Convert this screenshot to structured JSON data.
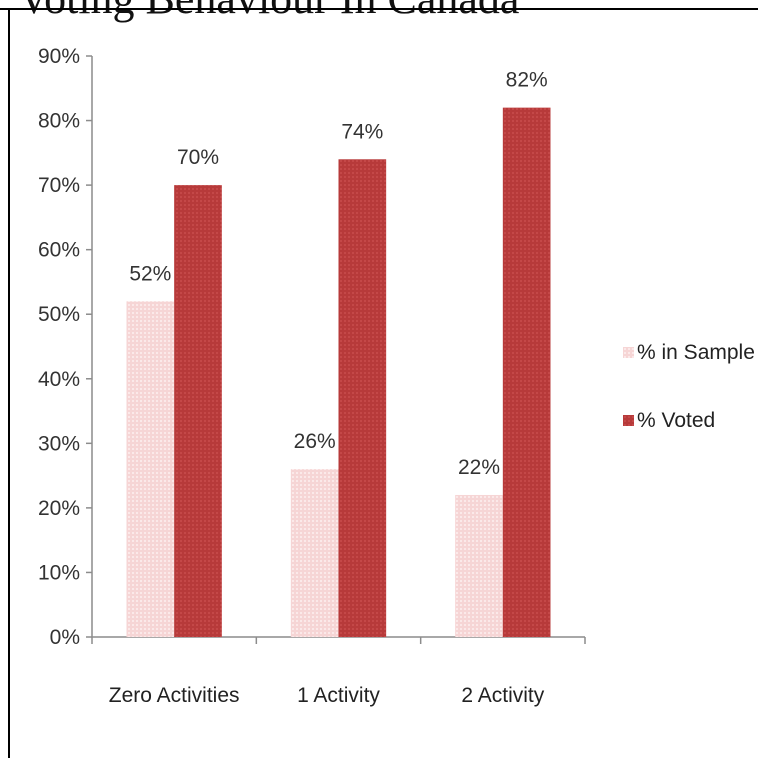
{
  "chart_data": {
    "type": "bar",
    "title": "Voting Behaviour In Canada",
    "categories": [
      "Zero Activities",
      "1 Activity",
      "2 Activity"
    ],
    "series": [
      {
        "name": "% in Sample",
        "values": [
          52,
          26,
          22
        ],
        "labels": [
          "52%",
          "26%",
          "22%"
        ],
        "color": "#f6d5d5"
      },
      {
        "name": "% Voted",
        "values": [
          70,
          74,
          82
        ],
        "labels": [
          "70%",
          "74%",
          "82%"
        ],
        "color": "#b73a3a"
      }
    ],
    "ylim": [
      0,
      90
    ],
    "yticks": [
      {
        "value": 0,
        "label": "0%"
      },
      {
        "value": 10,
        "label": "10%"
      },
      {
        "value": 20,
        "label": "20%"
      },
      {
        "value": 30,
        "label": "30%"
      },
      {
        "value": 40,
        "label": "40%"
      },
      {
        "value": 50,
        "label": "50%"
      },
      {
        "value": 60,
        "label": "60%"
      },
      {
        "value": 70,
        "label": "70%"
      },
      {
        "value": 80,
        "label": "80%"
      },
      {
        "value": 90,
        "label": "90%"
      }
    ],
    "xlabel": "",
    "ylabel": "",
    "grid": false,
    "legend_position": "right"
  }
}
